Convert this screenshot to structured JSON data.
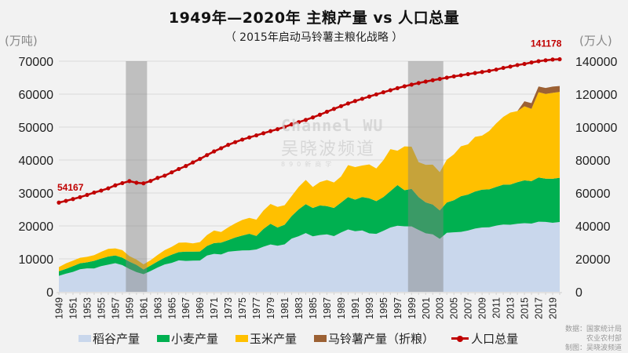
{
  "chart_data": {
    "type": "area",
    "title": "1949年—2020年 主粮产量 vs 人口总量",
    "subtitle": "（ 2015年启动马铃薯主粮化战略 ）",
    "y_left_unit": "(万吨)",
    "y_right_unit": "(万人)",
    "y_left_ticks": [
      "0",
      "10000",
      "20000",
      "30000",
      "40000",
      "50000",
      "60000",
      "70000"
    ],
    "y_right_ticks": [
      "0",
      "20000",
      "40000",
      "60000",
      "80000",
      "100000",
      "120000",
      "140000"
    ],
    "ylim_left": [
      0,
      70000
    ],
    "ylim_right": [
      0,
      140000
    ],
    "x_tick_labels": [
      "1949",
      "1951",
      "1953",
      "1955",
      "1957",
      "1959",
      "1961",
      "1963",
      "1965",
      "1967",
      "1969",
      "1971",
      "1973",
      "1975",
      "1977",
      "1979",
      "1981",
      "1983",
      "1985",
      "1987",
      "1989",
      "1991",
      "1993",
      "1995",
      "1997",
      "1999",
      "2001",
      "2003",
      "2005",
      "2007",
      "2009",
      "2011",
      "2013",
      "2015",
      "2017",
      "2019"
    ],
    "grid": true,
    "legend_position": "bottom",
    "highlight_periods": [
      [
        "1959",
        "1961"
      ],
      [
        "1999",
        "2003"
      ]
    ],
    "years": [
      1949,
      1950,
      1951,
      1952,
      1953,
      1954,
      1955,
      1956,
      1957,
      1958,
      1959,
      1960,
      1961,
      1962,
      1963,
      1964,
      1965,
      1966,
      1967,
      1968,
      1969,
      1970,
      1971,
      1972,
      1973,
      1974,
      1975,
      1976,
      1977,
      1978,
      1979,
      1980,
      1981,
      1982,
      1983,
      1984,
      1985,
      1986,
      1987,
      1988,
      1989,
      1990,
      1991,
      1992,
      1993,
      1994,
      1995,
      1996,
      1997,
      1998,
      1999,
      2000,
      2001,
      2002,
      2003,
      2004,
      2005,
      2006,
      2007,
      2008,
      2009,
      2010,
      2011,
      2012,
      2013,
      2014,
      2015,
      2016,
      2017,
      2018,
      2019,
      2020
    ],
    "series": [
      {
        "name": "稻谷产量",
        "axis": "left",
        "stacked": true,
        "color": "#c9d7ec",
        "values": [
          4865,
          5510,
          6056,
          6843,
          7127,
          7085,
          7803,
          8248,
          8678,
          8085,
          6937,
          5973,
          5364,
          6299,
          7377,
          8300,
          8772,
          9539,
          9369,
          9453,
          9507,
          10999,
          11521,
          11336,
          12174,
          12391,
          12556,
          12581,
          12857,
          13693,
          14375,
          13991,
          14396,
          16160,
          16887,
          17826,
          16857,
          17222,
          17426,
          16911,
          18013,
          18933,
          18381,
          18622,
          17751,
          17593,
          18523,
          19510,
          20074,
          19871,
          19849,
          18791,
          17758,
          17454,
          16066,
          17909,
          18059,
          18172,
          18603,
          19190,
          19510,
          19576,
          20100,
          20424,
          20361,
          20651,
          20823,
          20708,
          21268,
          21213,
          20961,
          21186
        ]
      },
      {
        "name": "小麦产量",
        "axis": "left",
        "stacked": true,
        "color": "#00b050",
        "values": [
          1381,
          1450,
          1727,
          1813,
          1828,
          2334,
          2297,
          2480,
          2364,
          2259,
          2218,
          2217,
          1425,
          1667,
          1848,
          2084,
          2522,
          2528,
          2848,
          2746,
          2729,
          2919,
          3258,
          3599,
          3523,
          4087,
          4531,
          5039,
          4108,
          5384,
          6273,
          5521,
          5964,
          6847,
          8139,
          8782,
          8581,
          9004,
          8590,
          8543,
          9081,
          9823,
          9595,
          10159,
          10639,
          9930,
          10221,
          11057,
          12329,
          10973,
          11388,
          9964,
          9387,
          9029,
          8649,
          9195,
          9745,
          10847,
          10930,
          11246,
          11512,
          11518,
          11740,
          12102,
          12193,
          12621,
          13019,
          12885,
          13424,
          13144,
          13359,
          13425
        ]
      },
      {
        "name": "玉米产量",
        "axis": "left",
        "stacked": true,
        "color": "#ffc000",
        "values": [
          1242,
          1685,
          1685,
          1685,
          1669,
          1714,
          2032,
          2305,
          2144,
          2313,
          1667,
          1603,
          1551,
          1626,
          1959,
          2270,
          2365,
          2843,
          2740,
          2507,
          2849,
          3303,
          3825,
          3211,
          3864,
          4306,
          4722,
          4816,
          4938,
          5595,
          6004,
          6260,
          5921,
          6056,
          6821,
          7341,
          6383,
          7086,
          7924,
          7735,
          7893,
          9682,
          9877,
          9538,
          10270,
          9927,
          11199,
          12747,
          10431,
          13296,
          12809,
          10600,
          11409,
          12131,
          11583,
          13029,
          13937,
          15160,
          15230,
          16591,
          16397,
          17725,
          19278,
          20561,
          21849,
          21565,
          22463,
          21955,
          25907,
          25717,
          26078,
          26067
        ]
      },
      {
        "name": "马铃薯产量（折粮）",
        "axis": "left",
        "stacked": true,
        "color": "#9c6134",
        "values": [
          0,
          0,
          0,
          0,
          0,
          0,
          0,
          0,
          0,
          0,
          0,
          0,
          0,
          0,
          0,
          0,
          0,
          0,
          0,
          0,
          0,
          0,
          0,
          0,
          0,
          0,
          0,
          0,
          0,
          0,
          0,
          0,
          0,
          0,
          0,
          0,
          0,
          0,
          0,
          0,
          0,
          0,
          0,
          0,
          0,
          0,
          0,
          0,
          0,
          0,
          0,
          0,
          0,
          0,
          0,
          0,
          0,
          0,
          0,
          0,
          0,
          0,
          0,
          0,
          0,
          0,
          1512,
          1723,
          1728,
          1798,
          1882,
          1798
        ]
      },
      {
        "name": "人口总量",
        "axis": "right",
        "type": "line",
        "color": "#c00000",
        "values": [
          54167,
          55196,
          56300,
          57482,
          58796,
          60266,
          61465,
          62828,
          64653,
          65994,
          67207,
          66207,
          65859,
          67295,
          69172,
          70499,
          72538,
          74542,
          76368,
          78534,
          80671,
          82992,
          85229,
          87177,
          89211,
          90859,
          92420,
          93717,
          94974,
          96259,
          97542,
          98705,
          100072,
          101654,
          103008,
          104357,
          105851,
          107507,
          109300,
          111026,
          112704,
          114333,
          115823,
          117171,
          118517,
          119850,
          121121,
          122389,
          123626,
          124761,
          125786,
          126743,
          127627,
          128453,
          129227,
          129988,
          130756,
          131448,
          132129,
          132802,
          133450,
          134091,
          134916,
          135922,
          136726,
          137646,
          138326,
          139232,
          140011,
          140541,
          141008,
          141178
        ]
      }
    ],
    "annotations": [
      {
        "label": "54167",
        "year": 1949,
        "series": "人口总量"
      },
      {
        "label": "141178",
        "year": 2020,
        "series": "人口总量"
      }
    ]
  },
  "legend": {
    "items": [
      {
        "label": "稻谷产量",
        "color": "#c9d7ec"
      },
      {
        "label": "小麦产量",
        "color": "#00b050"
      },
      {
        "label": "玉米产量",
        "color": "#ffc000"
      },
      {
        "label": "马铃薯产量（折粮）",
        "color": "#9c6134"
      },
      {
        "label": "人口总量",
        "color": "#c00000"
      }
    ]
  },
  "source": {
    "line1": "数据：国家统计局",
    "line2": "农业农村部",
    "line3": "制图：吴晓波频道"
  },
  "watermark": {
    "top": "Channel WU",
    "cn": "吴晓波频道",
    "sub": "890新商学"
  }
}
